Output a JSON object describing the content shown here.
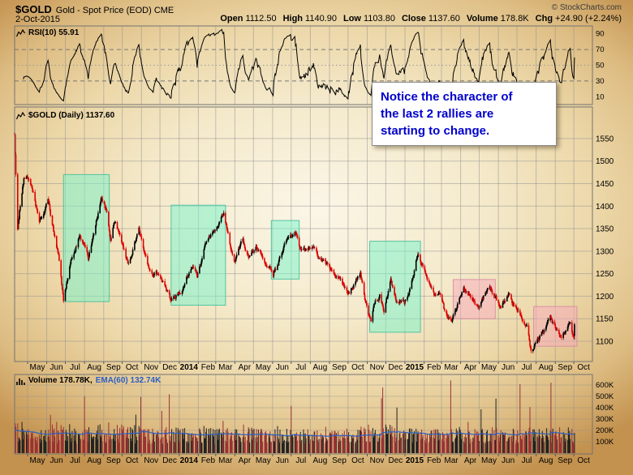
{
  "header": {
    "symbol": "$GOLD",
    "description": "Gold - Spot Price (EOD) CME",
    "copyright": "© StockCharts.com",
    "date": "2-Oct-2015",
    "quote": {
      "open_label": "Open",
      "open_value": "1112.50",
      "high_label": "High",
      "high_value": "1140.90",
      "low_label": "Low",
      "low_value": "1103.80",
      "close_label": "Close",
      "close_value": "1137.60",
      "volume_label": "Volume",
      "volume_value": "178.8K",
      "chg_label": "Chg",
      "chg_value": "+24.90 (+2.24%)"
    }
  },
  "rsi_panel": {
    "label": "RSI(10) 55.91"
  },
  "price_panel": {
    "label": "$GOLD (Daily) 1137.60"
  },
  "volume_panel": {
    "label_volume": "Volume 178.78K,",
    "label_ema": "EMA(60) 132.74K"
  },
  "annotation": {
    "lines": [
      "Notice the character of",
      "the last 2 rallies are",
      "starting to change."
    ],
    "color": "#0000cc"
  },
  "x_axis": {
    "labels": [
      "May",
      "Jun",
      "Jul",
      "Aug",
      "Sep",
      "Oct",
      "Nov",
      "Dec",
      "2014",
      "Feb",
      "Mar",
      "Apr",
      "May",
      "Jun",
      "Jul",
      "Aug",
      "Sep",
      "Oct",
      "Nov",
      "Dec",
      "2015",
      "Feb",
      "Mar",
      "Apr",
      "May",
      "Jun",
      "Jul",
      "Aug",
      "Sep",
      "Oct"
    ]
  },
  "colors": {
    "grid": "#8f8f8f",
    "panel_border": "#737373",
    "candle_up": "#000000",
    "candle_down": "#dd0000",
    "rsi_line": "#000000",
    "volume_up": "#222222",
    "volume_down": "#993333",
    "ema_line": "#2b5fc4",
    "highlight_teal_fill": "#76f3cc",
    "highlight_teal_stroke": "#3cbd9a",
    "highlight_pink_fill": "#f7a9bd",
    "highlight_pink_stroke": "#d788a0",
    "annotation_blue": "#0000cc",
    "axis_text": "#000000"
  },
  "chart_data": [
    {
      "type": "line",
      "panel": "rsi",
      "name": "RSI(10)",
      "period": 10,
      "current": 55.91,
      "range": [
        0,
        100
      ],
      "ticks": [
        90,
        70,
        50,
        30,
        10
      ],
      "overbought": 70,
      "midline": 50,
      "oversold": 30,
      "derived": "computed from the daily close series of the price panel"
    },
    {
      "type": "candlestick",
      "panel": "price",
      "name": "$GOLD (Daily)",
      "last": {
        "open": 1112.5,
        "high": 1140.9,
        "low": 1103.8,
        "close": 1137.6
      },
      "ylim": [
        1055,
        1620
      ],
      "yticks": [
        1550,
        1500,
        1450,
        1400,
        1350,
        1300,
        1250,
        1200,
        1150,
        1100
      ],
      "gridline_interval": 50,
      "x_start": "2013-04-10",
      "x_end": "2015-10-31",
      "data_end": "2015-10-02",
      "close_anchors": [
        [
          "2013-04-10",
          1562
        ],
        [
          "2013-04-12",
          1477
        ],
        [
          "2013-04-15",
          1352
        ],
        [
          "2013-04-18",
          1392
        ],
        [
          "2013-04-25",
          1462
        ],
        [
          "2013-05-03",
          1470
        ],
        [
          "2013-05-10",
          1436
        ],
        [
          "2013-05-20",
          1360
        ],
        [
          "2013-05-28",
          1385
        ],
        [
          "2013-06-03",
          1412
        ],
        [
          "2013-06-20",
          1285
        ],
        [
          "2013-06-28",
          1192
        ],
        [
          "2013-07-11",
          1285
        ],
        [
          "2013-07-24",
          1335
        ],
        [
          "2013-08-07",
          1283
        ],
        [
          "2013-08-28",
          1418
        ],
        [
          "2013-09-06",
          1387
        ],
        [
          "2013-09-12",
          1322
        ],
        [
          "2013-09-19",
          1366
        ],
        [
          "2013-10-02",
          1315
        ],
        [
          "2013-10-11",
          1270
        ],
        [
          "2013-10-28",
          1352
        ],
        [
          "2013-11-12",
          1268
        ],
        [
          "2013-11-20",
          1242
        ],
        [
          "2013-11-29",
          1252
        ],
        [
          "2013-12-06",
          1228
        ],
        [
          "2013-12-19",
          1188
        ],
        [
          "2013-12-31",
          1205
        ],
        [
          "2014-01-14",
          1245
        ],
        [
          "2014-01-23",
          1262
        ],
        [
          "2014-01-30",
          1244
        ],
        [
          "2014-02-14",
          1320
        ],
        [
          "2014-03-14",
          1383
        ],
        [
          "2014-03-24",
          1310
        ],
        [
          "2014-04-01",
          1282
        ],
        [
          "2014-04-14",
          1325
        ],
        [
          "2014-04-24",
          1290
        ],
        [
          "2014-05-06",
          1308
        ],
        [
          "2014-05-27",
          1265
        ],
        [
          "2014-06-02",
          1244
        ],
        [
          "2014-06-20",
          1315
        ],
        [
          "2014-07-10",
          1338
        ],
        [
          "2014-07-15",
          1307
        ],
        [
          "2014-08-06",
          1306
        ],
        [
          "2014-08-21",
          1276
        ],
        [
          "2014-09-10",
          1250
        ],
        [
          "2014-09-30",
          1209
        ],
        [
          "2014-10-08",
          1222
        ],
        [
          "2014-10-21",
          1249
        ],
        [
          "2014-10-31",
          1172
        ],
        [
          "2014-11-07",
          1142
        ],
        [
          "2014-11-14",
          1186
        ],
        [
          "2014-11-21",
          1200
        ],
        [
          "2014-11-28",
          1168
        ],
        [
          "2014-12-09",
          1230
        ],
        [
          "2014-12-17",
          1189
        ],
        [
          "2014-12-31",
          1184
        ],
        [
          "2015-01-09",
          1216
        ],
        [
          "2015-01-22",
          1300
        ],
        [
          "2015-02-06",
          1234
        ],
        [
          "2015-02-17",
          1208
        ],
        [
          "2015-02-26",
          1210
        ],
        [
          "2015-03-06",
          1168
        ],
        [
          "2015-03-17",
          1148
        ],
        [
          "2015-04-06",
          1215
        ],
        [
          "2015-04-23",
          1187
        ],
        [
          "2015-05-01",
          1178
        ],
        [
          "2015-05-18",
          1225
        ],
        [
          "2015-06-05",
          1172
        ],
        [
          "2015-06-18",
          1202
        ],
        [
          "2015-07-07",
          1155
        ],
        [
          "2015-07-17",
          1132
        ],
        [
          "2015-07-24",
          1080
        ],
        [
          "2015-08-12",
          1116
        ],
        [
          "2015-08-24",
          1155
        ],
        [
          "2015-09-03",
          1124
        ],
        [
          "2015-09-11",
          1105
        ],
        [
          "2015-09-24",
          1152
        ],
        [
          "2015-10-01",
          1112
        ],
        [
          "2015-10-02",
          1137.6
        ]
      ],
      "highlights": [
        {
          "palette": "teal",
          "from": "2013-06-28",
          "to": "2013-09-10",
          "price_low": 1188,
          "price_high": 1470
        },
        {
          "palette": "teal",
          "from": "2013-12-19",
          "to": "2014-03-17",
          "price_low": 1180,
          "price_high": 1402
        },
        {
          "palette": "teal",
          "from": "2014-05-30",
          "to": "2014-07-14",
          "price_low": 1238,
          "price_high": 1368
        },
        {
          "palette": "teal",
          "from": "2014-11-05",
          "to": "2015-01-26",
          "price_low": 1120,
          "price_high": 1322
        },
        {
          "palette": "pink",
          "from": "2015-03-20",
          "to": "2015-05-27",
          "price_low": 1150,
          "price_high": 1237
        },
        {
          "palette": "pink",
          "from": "2015-07-28",
          "to": "2015-10-06",
          "price_low": 1089,
          "price_high": 1177
        }
      ]
    },
    {
      "type": "bar",
      "panel": "volume",
      "name": "Volume",
      "current": 178780,
      "current_label": "178.78K",
      "ema_period": 60,
      "ema_current": 132740,
      "ema_current_label": "132.74K",
      "ylim": [
        0,
        650000
      ],
      "yticks": [
        600000,
        500000,
        400000,
        300000,
        200000,
        100000
      ],
      "ytick_labels": [
        "600K",
        "500K",
        "400K",
        "300K",
        "200K",
        "100K"
      ]
    }
  ]
}
